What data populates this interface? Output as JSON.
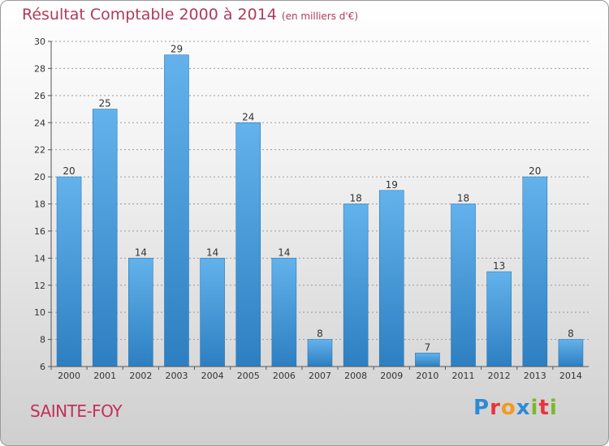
{
  "title": "Résultat Comptable 2000 à 2014",
  "subtitle": "(en milliers d'€)",
  "commune": "SAINTE-FOY",
  "logo": {
    "letters": [
      "P",
      "r",
      "o",
      "x",
      "i",
      "t",
      "i"
    ],
    "colors": [
      "#2d8bd6",
      "#e6353c",
      "#f29a1f",
      "#2d8bd6",
      "#7ab929",
      "#e6353c",
      "#7ab929"
    ]
  },
  "colors": {
    "title": "#b03a5b",
    "bar_light": "#63b2ec",
    "bar_dark": "#2d7fc1",
    "grid": "#9a9a9a",
    "label": "#333333"
  },
  "chart_data": {
    "type": "bar",
    "title": "Résultat Comptable 2000 à 2014",
    "xlabel": "",
    "ylabel": "",
    "ylim": [
      6,
      30
    ],
    "yticks": [
      6,
      8,
      10,
      12,
      14,
      16,
      18,
      20,
      22,
      24,
      26,
      28,
      30
    ],
    "grid": true,
    "categories": [
      "2000",
      "2001",
      "2002",
      "2003",
      "2004",
      "2005",
      "2006",
      "2007",
      "2008",
      "2009",
      "2010",
      "2011",
      "2012",
      "2013",
      "2014"
    ],
    "values": [
      20,
      25,
      14,
      29,
      14,
      24,
      14,
      8,
      18,
      19,
      7,
      18,
      13,
      20,
      8
    ]
  }
}
